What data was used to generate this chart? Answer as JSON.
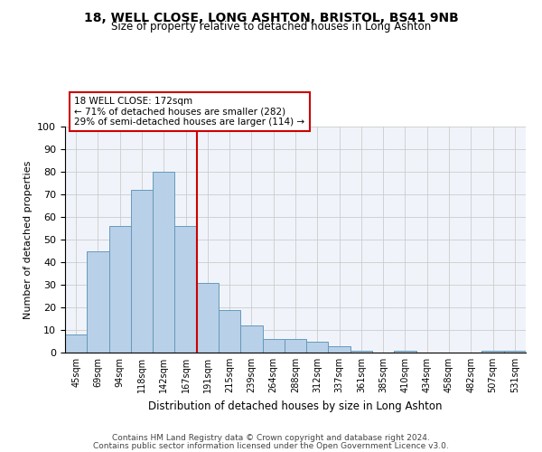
{
  "title": "18, WELL CLOSE, LONG ASHTON, BRISTOL, BS41 9NB",
  "subtitle": "Size of property relative to detached houses in Long Ashton",
  "xlabel": "Distribution of detached houses by size in Long Ashton",
  "ylabel": "Number of detached properties",
  "categories": [
    "45sqm",
    "69sqm",
    "94sqm",
    "118sqm",
    "142sqm",
    "167sqm",
    "191sqm",
    "215sqm",
    "239sqm",
    "264sqm",
    "288sqm",
    "312sqm",
    "337sqm",
    "361sqm",
    "385sqm",
    "410sqm",
    "434sqm",
    "458sqm",
    "482sqm",
    "507sqm",
    "531sqm"
  ],
  "values": [
    8,
    45,
    56,
    72,
    80,
    56,
    31,
    19,
    12,
    6,
    6,
    5,
    3,
    1,
    0,
    1,
    0,
    0,
    0,
    1,
    1
  ],
  "bar_color": "#b8d0e8",
  "bar_edge_color": "#6699bb",
  "ref_line_label": "18 WELL CLOSE: 172sqm",
  "annotation_line2": "← 71% of detached houses are smaller (282)",
  "annotation_line3": "29% of semi-detached houses are larger (114) →",
  "ref_line_color": "#cc0000",
  "box_edge_color": "#cc0000",
  "ylim": [
    0,
    100
  ],
  "yticks": [
    0,
    10,
    20,
    30,
    40,
    50,
    60,
    70,
    80,
    90,
    100
  ],
  "grid_color": "#cccccc",
  "bg_color": "#f0f4fa",
  "footer1": "Contains HM Land Registry data © Crown copyright and database right 2024.",
  "footer2": "Contains public sector information licensed under the Open Government Licence v3.0."
}
